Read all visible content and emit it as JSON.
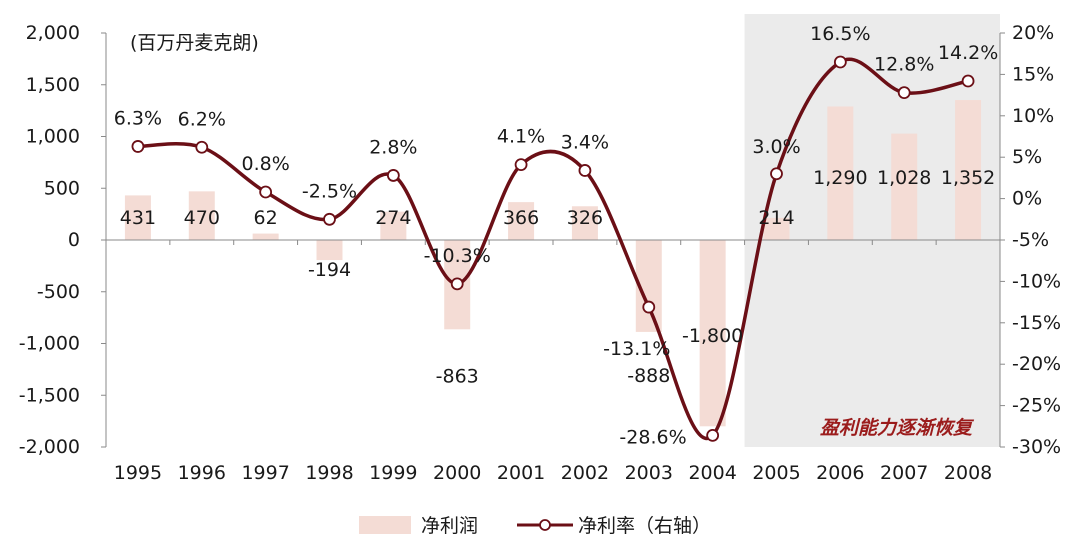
{
  "chart_data": {
    "type": "bar+line",
    "unit_label": "(百万丹麦克朗)",
    "categories": [
      "1995",
      "1996",
      "1997",
      "1998",
      "1999",
      "2000",
      "2001",
      "2002",
      "2003",
      "2004",
      "2005",
      "2006",
      "2007",
      "2008"
    ],
    "series": [
      {
        "name": "净利润",
        "type": "bar",
        "axis": "left",
        "values": [
          431,
          470,
          62,
          -194,
          274,
          -863,
          366,
          326,
          -888,
          -1800,
          214,
          1290,
          1028,
          1352
        ],
        "labels": [
          "431",
          "470",
          "62",
          "-194",
          "274",
          "-863",
          "366",
          "326",
          "-888",
          "-1,800",
          "214",
          "1,290",
          "1,028",
          "1,352"
        ]
      },
      {
        "name": "净利率（右轴）",
        "type": "line",
        "axis": "right",
        "values": [
          6.3,
          6.2,
          0.8,
          -2.5,
          2.8,
          -10.3,
          4.1,
          3.4,
          -13.1,
          -28.6,
          3.0,
          16.5,
          12.8,
          14.2
        ],
        "labels": [
          "6.3%",
          "6.2%",
          "0.8%",
          "-2.5%",
          "2.8%",
          "-10.3%",
          "4.1%",
          "3.4%",
          "-13.1%",
          "-28.6%",
          "3.0%",
          "16.5%",
          "12.8%",
          "14.2%"
        ]
      }
    ],
    "left_axis": {
      "ylim": [
        -2000,
        2000
      ],
      "ticks": [
        2000,
        1500,
        1000,
        500,
        0,
        -500,
        -1000,
        -1500,
        -2000
      ],
      "tick_labels": [
        "2,000",
        "1,500",
        "1,000",
        "500",
        "0",
        "-500",
        "-1,000",
        "-1,500",
        "-2,000"
      ]
    },
    "right_axis": {
      "ylim": [
        -30,
        20
      ],
      "ticks": [
        20,
        15,
        10,
        5,
        0,
        -5,
        -10,
        -15,
        -20,
        -25,
        -30
      ],
      "tick_labels": [
        "20%",
        "15%",
        "10%",
        "5%",
        "0%",
        "-5%",
        "-10%",
        "-15%",
        "-20%",
        "-25%",
        "-30%"
      ]
    },
    "highlight": {
      "from": "2005",
      "to": "2008",
      "annotation": "盈利能力逐渐恢复"
    },
    "legend": {
      "position": "bottom",
      "items": [
        "净利润",
        "净利率（右轴）"
      ]
    },
    "colors": {
      "bar": "#f4dcd5",
      "line": "#6b0f16",
      "marker_fill": "#ffffff",
      "highlight": "#ebebeb",
      "axis": "#8a8a8a",
      "annotation": "#9b1c1c"
    }
  }
}
